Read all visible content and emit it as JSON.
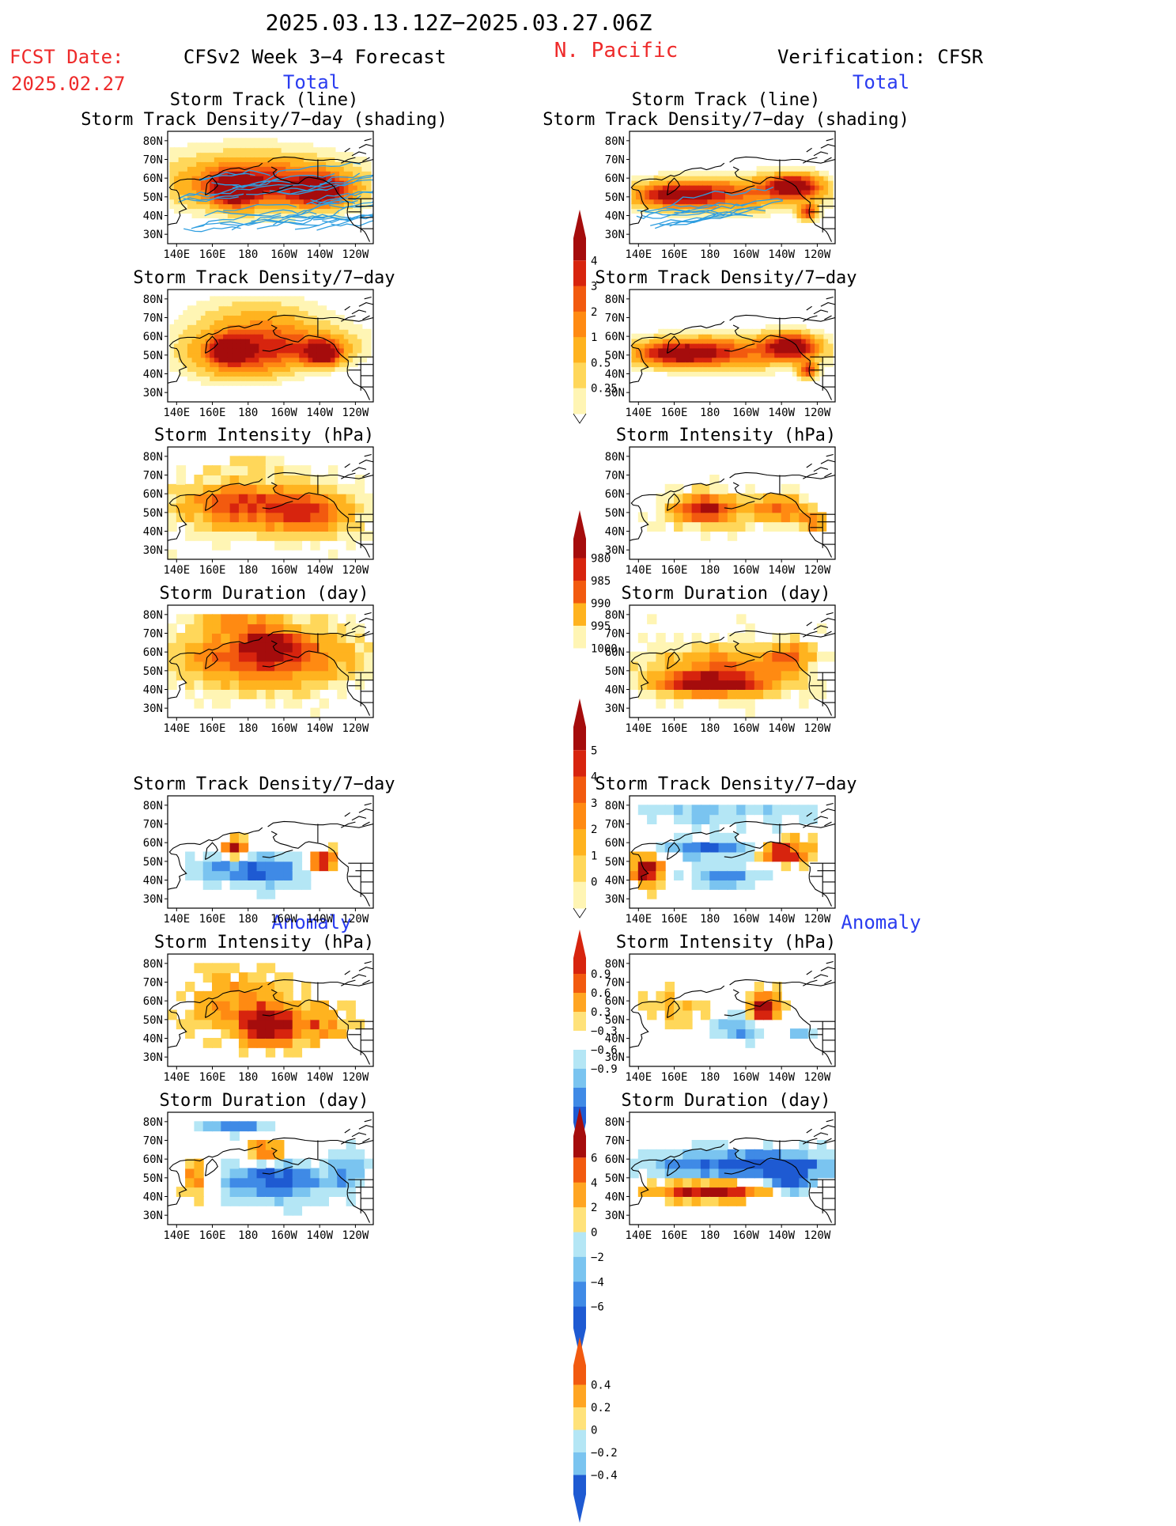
{
  "header": {
    "period": "2025.03.13.12Z−2025.03.27.06Z",
    "fcst_label": "FCST Date:",
    "fcst_date": "2025.02.27",
    "model_title": "CFSv2 Week 3−4 Forecast",
    "region": "N. Pacific",
    "verification": "Verification: CFSR",
    "left_section_total": "Total",
    "right_section_total": "Total",
    "left_section_anomaly": "Anomaly",
    "right_section_anomaly": "Anomaly"
  },
  "axes": {
    "lat_ticks": [
      "80N",
      "70N",
      "60N",
      "50N",
      "40N",
      "30N"
    ],
    "lon_ticks": [
      "140E",
      "160E",
      "180",
      "160W",
      "140W",
      "120W"
    ]
  },
  "colors": {
    "yellow_light": "#fff5b4",
    "yellow": "#ffd75a",
    "orange_light": "#ffb31f",
    "orange": "#ff8a12",
    "orange_red": "#f25a0f",
    "red": "#d7240e",
    "dark_red": "#a50c0c",
    "blue_light": "#b4e6f5",
    "blue_mid": "#7ac4f0",
    "blue": "#3f8ae6",
    "blue_dark": "#1e5ad2",
    "track_line": "#2f9ee0"
  },
  "chart_data": [
    {
      "type": "heatmap",
      "column": "forecast",
      "section": "Total",
      "title_line1": "Storm Track (line)",
      "title_line2": "Storm Track Density/7−day (shading)",
      "variable": "Storm Track Density/7-day",
      "tracks": true,
      "blobs": [
        [
          172,
          54,
          11,
          8,
          1.0
        ],
        [
          221,
          53,
          13,
          7,
          1.0
        ],
        [
          198,
          56,
          45,
          11,
          0.55
        ],
        [
          180,
          60,
          48,
          16,
          0.35
        ]
      ]
    },
    {
      "type": "heatmap",
      "column": "forecast",
      "section": "Total",
      "title_line1": "Storm Track Density/7−day",
      "variable": "Storm Track Density/7-day",
      "blobs": [
        [
          170,
          53,
          9,
          6,
          1.0
        ],
        [
          222,
          51,
          10,
          6,
          1.0
        ],
        [
          195,
          55,
          42,
          10,
          0.55
        ],
        [
          185,
          67,
          35,
          14,
          0.3
        ],
        [
          176,
          46,
          28,
          10,
          0.4
        ]
      ]
    },
    {
      "type": "heatmap",
      "column": "forecast",
      "section": "Total",
      "title_line1": "Storm Intensity (hPa)",
      "variable": "Storm Intensity (hPa)",
      "blobs": [
        [
          175,
          54,
          35,
          12,
          0.65
        ],
        [
          215,
          50,
          25,
          12,
          0.6
        ],
        [
          182,
          75,
          22,
          5,
          0.2
        ]
      ]
    },
    {
      "type": "heatmap",
      "column": "forecast",
      "section": "Total",
      "title_line1": "Storm Duration (day)",
      "variable": "Storm Duration (day)",
      "blobs": [
        [
          190,
          58,
          45,
          16,
          0.78
        ],
        [
          192,
          64,
          12,
          5,
          1.0
        ],
        [
          175,
          76,
          20,
          5,
          0.35
        ]
      ]
    },
    {
      "type": "heatmap",
      "column": "verification",
      "section": "Total",
      "title_line1": "Storm Track (line)",
      "title_line2": "Storm Track Density/7−day (shading)",
      "variable": "Storm Track Density/7-day",
      "tracks": true,
      "blobs": [
        [
          162,
          51,
          24,
          6,
          0.85
        ],
        [
          227,
          56,
          14,
          6,
          1.0
        ],
        [
          235,
          42,
          5,
          4,
          0.75
        ],
        [
          195,
          52,
          45,
          9,
          0.5
        ]
      ]
    },
    {
      "type": "heatmap",
      "column": "verification",
      "section": "Total",
      "title_line1": "Storm Track Density/7−day",
      "variable": "Storm Track Density/7-day",
      "blobs": [
        [
          163,
          51,
          24,
          6,
          0.9
        ],
        [
          226,
          55,
          13,
          6,
          1.0
        ],
        [
          235,
          42,
          5,
          4,
          0.75
        ],
        [
          195,
          52,
          45,
          9,
          0.5
        ]
      ]
    },
    {
      "type": "heatmap",
      "column": "verification",
      "section": "Total",
      "title_line1": "Storm Intensity (hPa)",
      "variable": "Storm Intensity (hPa)",
      "blobs": [
        [
          178,
          52,
          20,
          8,
          0.85
        ],
        [
          220,
          52,
          16,
          7,
          0.55
        ],
        [
          238,
          45,
          6,
          4,
          0.55
        ]
      ]
    },
    {
      "type": "heatmap",
      "column": "verification",
      "section": "Total",
      "title_line1": "Storm Duration (day)",
      "variable": "Storm Duration (day)",
      "blobs": [
        [
          190,
          52,
          40,
          12,
          0.5
        ],
        [
          180,
          43,
          30,
          6,
          0.85
        ],
        [
          225,
          58,
          12,
          7,
          0.45
        ]
      ]
    },
    {
      "type": "heatmap",
      "column": "forecast",
      "section": "Anomaly",
      "title_line1": "Storm Track Density/7−day",
      "variable": "Storm Track Density/7-day anomaly",
      "blobs": [
        [
          172,
          57,
          6,
          5,
          0.9
        ],
        [
          222,
          50,
          7,
          6,
          0.9
        ],
        [
          188,
          45,
          22,
          7,
          -0.8
        ],
        [
          160,
          48,
          12,
          8,
          -0.35
        ]
      ]
    },
    {
      "type": "heatmap",
      "column": "forecast",
      "section": "Anomaly",
      "title_line1": "Storm Intensity (hPa)",
      "variable": "Storm Intensity (hPa) anomaly",
      "blobs": [
        [
          192,
          46,
          14,
          9,
          1.0
        ],
        [
          175,
          58,
          28,
          16,
          0.45
        ],
        [
          220,
          48,
          15,
          10,
          0.45
        ]
      ]
    },
    {
      "type": "heatmap",
      "column": "forecast",
      "section": "Anomaly",
      "title_line1": "Storm Duration (day)",
      "variable": "Storm Duration (day) anomaly",
      "blobs": [
        [
          195,
          48,
          30,
          9,
          -0.85
        ],
        [
          190,
          64,
          10,
          5,
          0.7
        ],
        [
          172,
          80,
          18,
          4,
          -0.9
        ],
        [
          150,
          50,
          8,
          10,
          0.5
        ],
        [
          235,
          55,
          10,
          10,
          -0.5
        ]
      ]
    },
    {
      "type": "heatmap",
      "column": "verification",
      "section": "Anomaly",
      "title_line1": "Storm Track Density/7−day",
      "variable": "Storm Track Density/7-day anomaly",
      "blobs": [
        [
          222,
          55,
          13,
          6,
          0.95
        ],
        [
          145,
          45,
          8,
          8,
          0.9
        ],
        [
          188,
          42,
          18,
          5,
          -0.75
        ],
        [
          180,
          57,
          25,
          5,
          -0.7
        ],
        [
          190,
          78,
          50,
          8,
          -0.35
        ]
      ]
    },
    {
      "type": "heatmap",
      "column": "verification",
      "section": "Anomaly",
      "title_line1": "Storm Intensity (hPa)",
      "variable": "Storm Intensity (hPa) anomaly",
      "blobs": [
        [
          210,
          57,
          8,
          7,
          1.0
        ],
        [
          195,
          45,
          14,
          6,
          -0.55
        ],
        [
          230,
          43,
          6,
          4,
          -0.55
        ],
        [
          160,
          55,
          15,
          10,
          0.3
        ]
      ]
    },
    {
      "type": "heatmap",
      "column": "verification",
      "section": "Anomaly",
      "title_line1": "Storm Duration (day)",
      "variable": "Storm Duration (day) anomaly",
      "blobs": [
        [
          200,
          57,
          55,
          7,
          -0.85
        ],
        [
          180,
          43,
          30,
          5,
          0.9
        ],
        [
          225,
          50,
          10,
          8,
          -0.9
        ]
      ]
    }
  ],
  "colorbars": [
    {
      "variable": "Storm Track Density/7-day",
      "labels": [
        "0.25",
        "0.5",
        "1",
        "2",
        "3",
        "4"
      ],
      "colors": [
        "#fff5b4",
        "#ffd75a",
        "#ffb31f",
        "#ff8a12",
        "#f25a0f",
        "#d7240e",
        "#a50c0c"
      ],
      "extend_low": false
    },
    {
      "variable": "Storm Intensity (hPa)",
      "labels": [
        "1000",
        "995",
        "990",
        "985",
        "980"
      ],
      "colors": [
        "#ffffff",
        "#fff5b4",
        "#ffb31f",
        "#f25a0f",
        "#d7240e",
        "#a50c0c"
      ],
      "extend_low": true
    },
    {
      "variable": "Storm Duration (day)",
      "labels": [
        "0",
        "1",
        "2",
        "3",
        "4",
        "5"
      ],
      "colors": [
        "#fff5b4",
        "#ffd75a",
        "#ffb31f",
        "#ff8a12",
        "#f25a0f",
        "#d7240e",
        "#a50c0c"
      ],
      "extend_low": false
    },
    {
      "variable": "Storm Track Density/7-day anomaly",
      "labels": [
        "−0.9",
        "−0.6",
        "−0.3",
        "0.3",
        "0.6",
        "0.9"
      ],
      "colors": [
        "#1e5ad2",
        "#3f8ae6",
        "#7ac4f0",
        "#b4e6f5",
        "#ffffff",
        "#ffe27a",
        "#ffa522",
        "#f25a0f",
        "#d7240e"
      ],
      "extend_low": true
    },
    {
      "variable": "Storm Intensity (hPa) anomaly",
      "labels": [
        "−6",
        "−4",
        "−2",
        "0",
        "2",
        "4",
        "6"
      ],
      "colors": [
        "#1e5ad2",
        "#3f8ae6",
        "#7ac4f0",
        "#b4e6f5",
        "#ffe27a",
        "#ffa522",
        "#f25a0f",
        "#a50c0c"
      ],
      "extend_low": true
    },
    {
      "variable": "Storm Duration (day) anomaly",
      "labels": [
        "−0.4",
        "−0.2",
        "0",
        "0.2",
        "0.4"
      ],
      "colors": [
        "#1e5ad2",
        "#7ac4f0",
        "#b4e6f5",
        "#ffe27a",
        "#ffa522",
        "#f25a0f"
      ],
      "extend_low": true
    }
  ]
}
